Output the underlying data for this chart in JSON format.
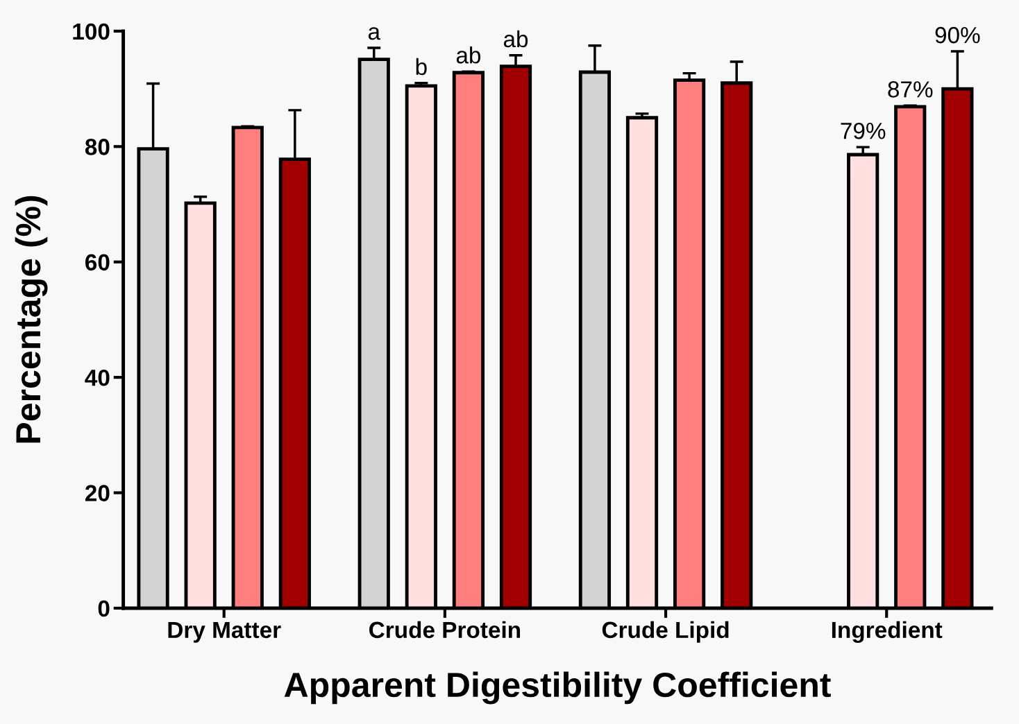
{
  "chart_data": {
    "type": "bar",
    "xlabel": "Apparent Digestibility Coefficient",
    "ylabel": "Percentage (%)",
    "categories": [
      "Dry Matter",
      "Crude Protein",
      "Crude Lipid",
      "Ingredient"
    ],
    "ylim": [
      0,
      100
    ],
    "yticks": [
      0,
      20,
      40,
      60,
      80,
      100
    ],
    "grid": false,
    "legend": false,
    "series": [
      {
        "color": "#d3d3d3",
        "values": [
          79.6,
          95.1,
          92.9,
          null
        ],
        "errors": [
          [
            79.6,
            90.9
          ],
          [
            95.1,
            97.1
          ],
          [
            92.9,
            97.5
          ],
          null
        ],
        "value_labels": [
          null,
          "a",
          null,
          null
        ]
      },
      {
        "color": "#ffdfe0",
        "values": [
          70.2,
          90.5,
          85.0,
          78.6
        ],
        "errors": [
          [
            70.2,
            71.3
          ],
          [
            90.5,
            91.0
          ],
          [
            85.0,
            85.7
          ],
          [
            78.6,
            79.9
          ]
        ],
        "value_labels": [
          null,
          "b",
          null,
          "79%"
        ]
      },
      {
        "color": "#ff7f7f",
        "values": [
          83.3,
          92.8,
          91.5,
          86.9
        ],
        "errors": [
          [
            83.3,
            83.5
          ],
          [
            92.8,
            93.0
          ],
          [
            91.5,
            92.7
          ],
          [
            86.9,
            87.1
          ]
        ],
        "value_labels": [
          null,
          "ab",
          null,
          "87%"
        ]
      },
      {
        "color": "#a00000",
        "values": [
          77.8,
          93.9,
          91.0,
          90.0
        ],
        "errors": [
          [
            77.8,
            86.3
          ],
          [
            93.9,
            95.8
          ],
          [
            91.0,
            94.7
          ],
          [
            90.0,
            96.5
          ]
        ],
        "value_labels": [
          null,
          "ab",
          null,
          "90%"
        ]
      }
    ]
  }
}
